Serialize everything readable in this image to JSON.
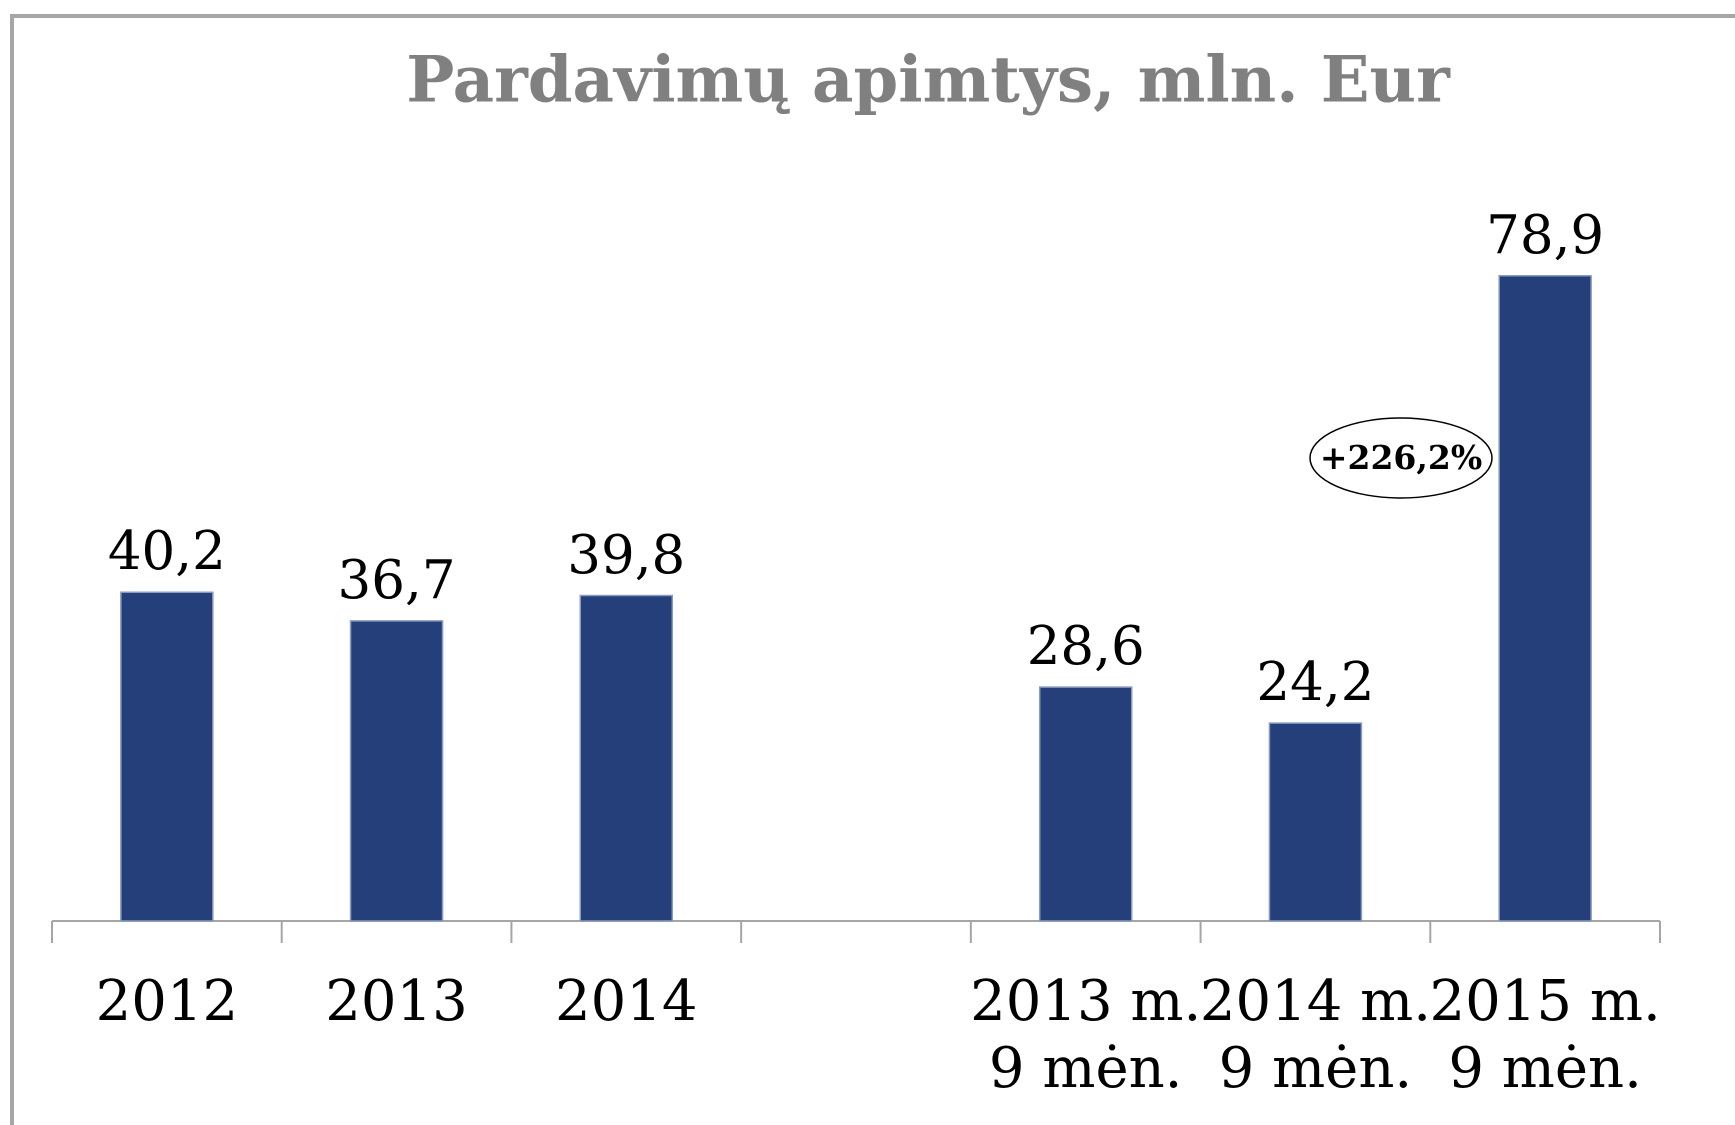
{
  "chart_data": {
    "type": "bar",
    "title": "Pardavimų apimtys, mln. Eur",
    "categories": [
      "2012",
      "2013",
      "2014",
      null,
      "2013 m.\n9 mėn.",
      "2014 m.\n9 mėn.",
      "2015 m.\n9 mėn."
    ],
    "values": [
      40.2,
      36.7,
      39.8,
      null,
      28.6,
      24.2,
      78.9
    ],
    "value_labels": [
      "40,2",
      "36,7",
      "39,8",
      null,
      "28,6",
      "24,2",
      "78,9"
    ],
    "color": "#243f7a",
    "ylim": [
      0,
      90
    ],
    "annotation": "+226,2%"
  }
}
